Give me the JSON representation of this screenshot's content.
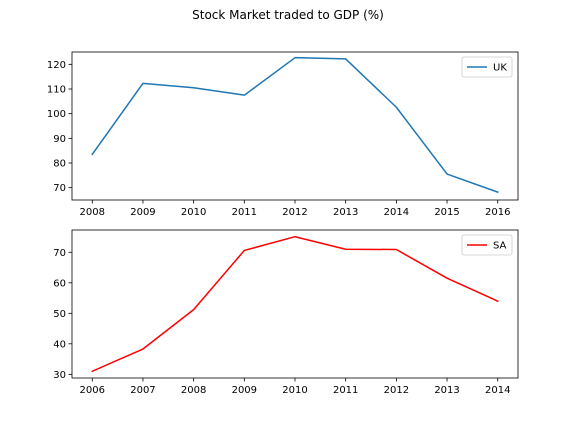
{
  "figure": {
    "title": "Stock Market traded to GDP (%)"
  },
  "chart_data": [
    {
      "type": "line",
      "x": [
        2008,
        2009,
        2010,
        2011,
        2012,
        2013,
        2014,
        2015,
        2016
      ],
      "series": [
        {
          "name": "UK",
          "color": "#1f77b4",
          "values": [
            83.5,
            112.3,
            110.5,
            107.5,
            122.7,
            122.2,
            102.6,
            75.5,
            68.2
          ]
        }
      ],
      "xticks": [
        "2008",
        "2009",
        "2010",
        "2011",
        "2012",
        "2013",
        "2014",
        "2015",
        "2016"
      ],
      "yticks": [
        "70",
        "80",
        "90",
        "100",
        "110",
        "120"
      ],
      "xlim": [
        2007.6,
        2016.4
      ],
      "ylim": [
        65.0,
        125.0
      ],
      "grid": false,
      "legend": "top-right"
    },
    {
      "type": "line",
      "x": [
        2006,
        2007,
        2008,
        2009,
        2010,
        2011,
        2012,
        2013,
        2014
      ],
      "series": [
        {
          "name": "SA",
          "color": "#ff0000",
          "values": [
            31.0,
            38.3,
            51.2,
            70.6,
            75.1,
            71.0,
            70.9,
            61.5,
            54.0
          ]
        }
      ],
      "xticks": [
        "2006",
        "2007",
        "2008",
        "2009",
        "2010",
        "2011",
        "2012",
        "2013",
        "2014"
      ],
      "yticks": [
        "30",
        "40",
        "50",
        "60",
        "70"
      ],
      "xlim": [
        2005.6,
        2014.4
      ],
      "ylim": [
        28.8,
        77.3
      ],
      "grid": false,
      "legend": "top-right"
    }
  ]
}
